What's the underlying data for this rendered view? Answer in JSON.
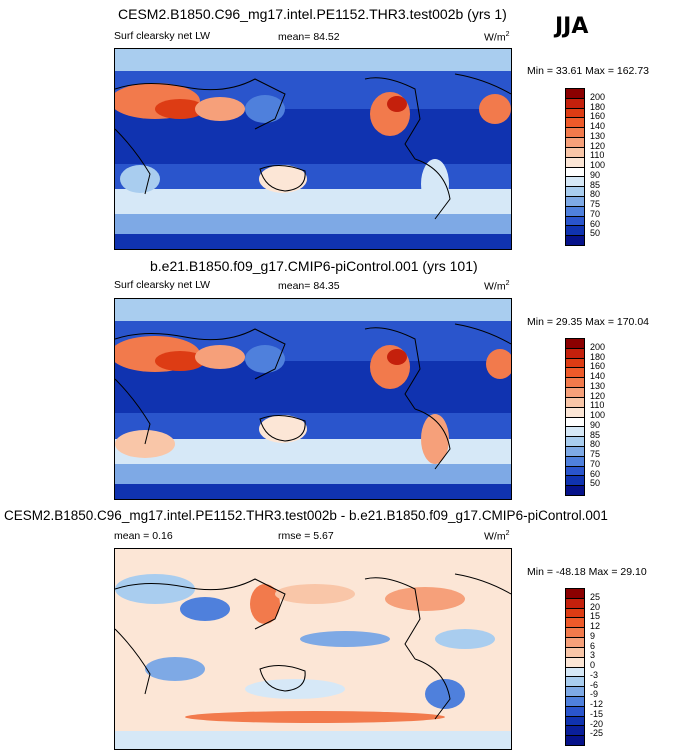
{
  "season": "JJA",
  "units": "W/m",
  "units_sup": "2",
  "panels": [
    {
      "title": "CESM2.B1850.C96_mg17.intel.PE1152.THR3.test002b (yrs 1)",
      "left_label": "Surf clearsky net LW",
      "center_label": "mean=  84.52",
      "minmax": "Min =  33.61 Max = 162.73"
    },
    {
      "title": "b.e21.B1850.f09_g17.CMIP6-piControl.001 (yrs 101)",
      "left_label": "Surf clearsky net LW",
      "center_label": "mean=  84.35",
      "minmax": "Min =  29.35 Max = 170.04"
    },
    {
      "title": "CESM2.B1850.C96_mg17.intel.PE1152.THR3.test002b - b.e21.B1850.f09_g17.CMIP6-piControl.001",
      "left_label": "mean =   0.16",
      "center_label": "rmse =   5.67",
      "minmax": "Min = -48.18 Max =  29.10"
    }
  ],
  "colorbar_abs": {
    "levels": [
      "200",
      "180",
      "160",
      "140",
      "130",
      "120",
      "110",
      "100",
      "90",
      "85",
      "80",
      "75",
      "70",
      "60",
      "50"
    ],
    "colors": [
      "#8b0000",
      "#c4200c",
      "#dd3c14",
      "#ee5a2a",
      "#f27a4c",
      "#f6a07a",
      "#f9c6a8",
      "#fce6d6",
      "#ffffff",
      "#d6e8f7",
      "#a9cdef",
      "#7ea9e5",
      "#4f80dc",
      "#2a55cc",
      "#1033b0",
      "#06128a"
    ]
  },
  "colorbar_diff": {
    "levels": [
      "25",
      "20",
      "15",
      "12",
      "9",
      "6",
      "3",
      "0",
      "-3",
      "-6",
      "-9",
      "-12",
      "-15",
      "-20",
      "-25"
    ],
    "colors": [
      "#8b0000",
      "#c4200c",
      "#dd3c14",
      "#ee5a2a",
      "#f27a4c",
      "#f6a07a",
      "#f9c6a8",
      "#fce6d6",
      "#d6e8f7",
      "#a9cdef",
      "#7ea9e5",
      "#4f80dc",
      "#2a55cc",
      "#1033b0",
      "#0a1f9a",
      "#06128a"
    ]
  }
}
